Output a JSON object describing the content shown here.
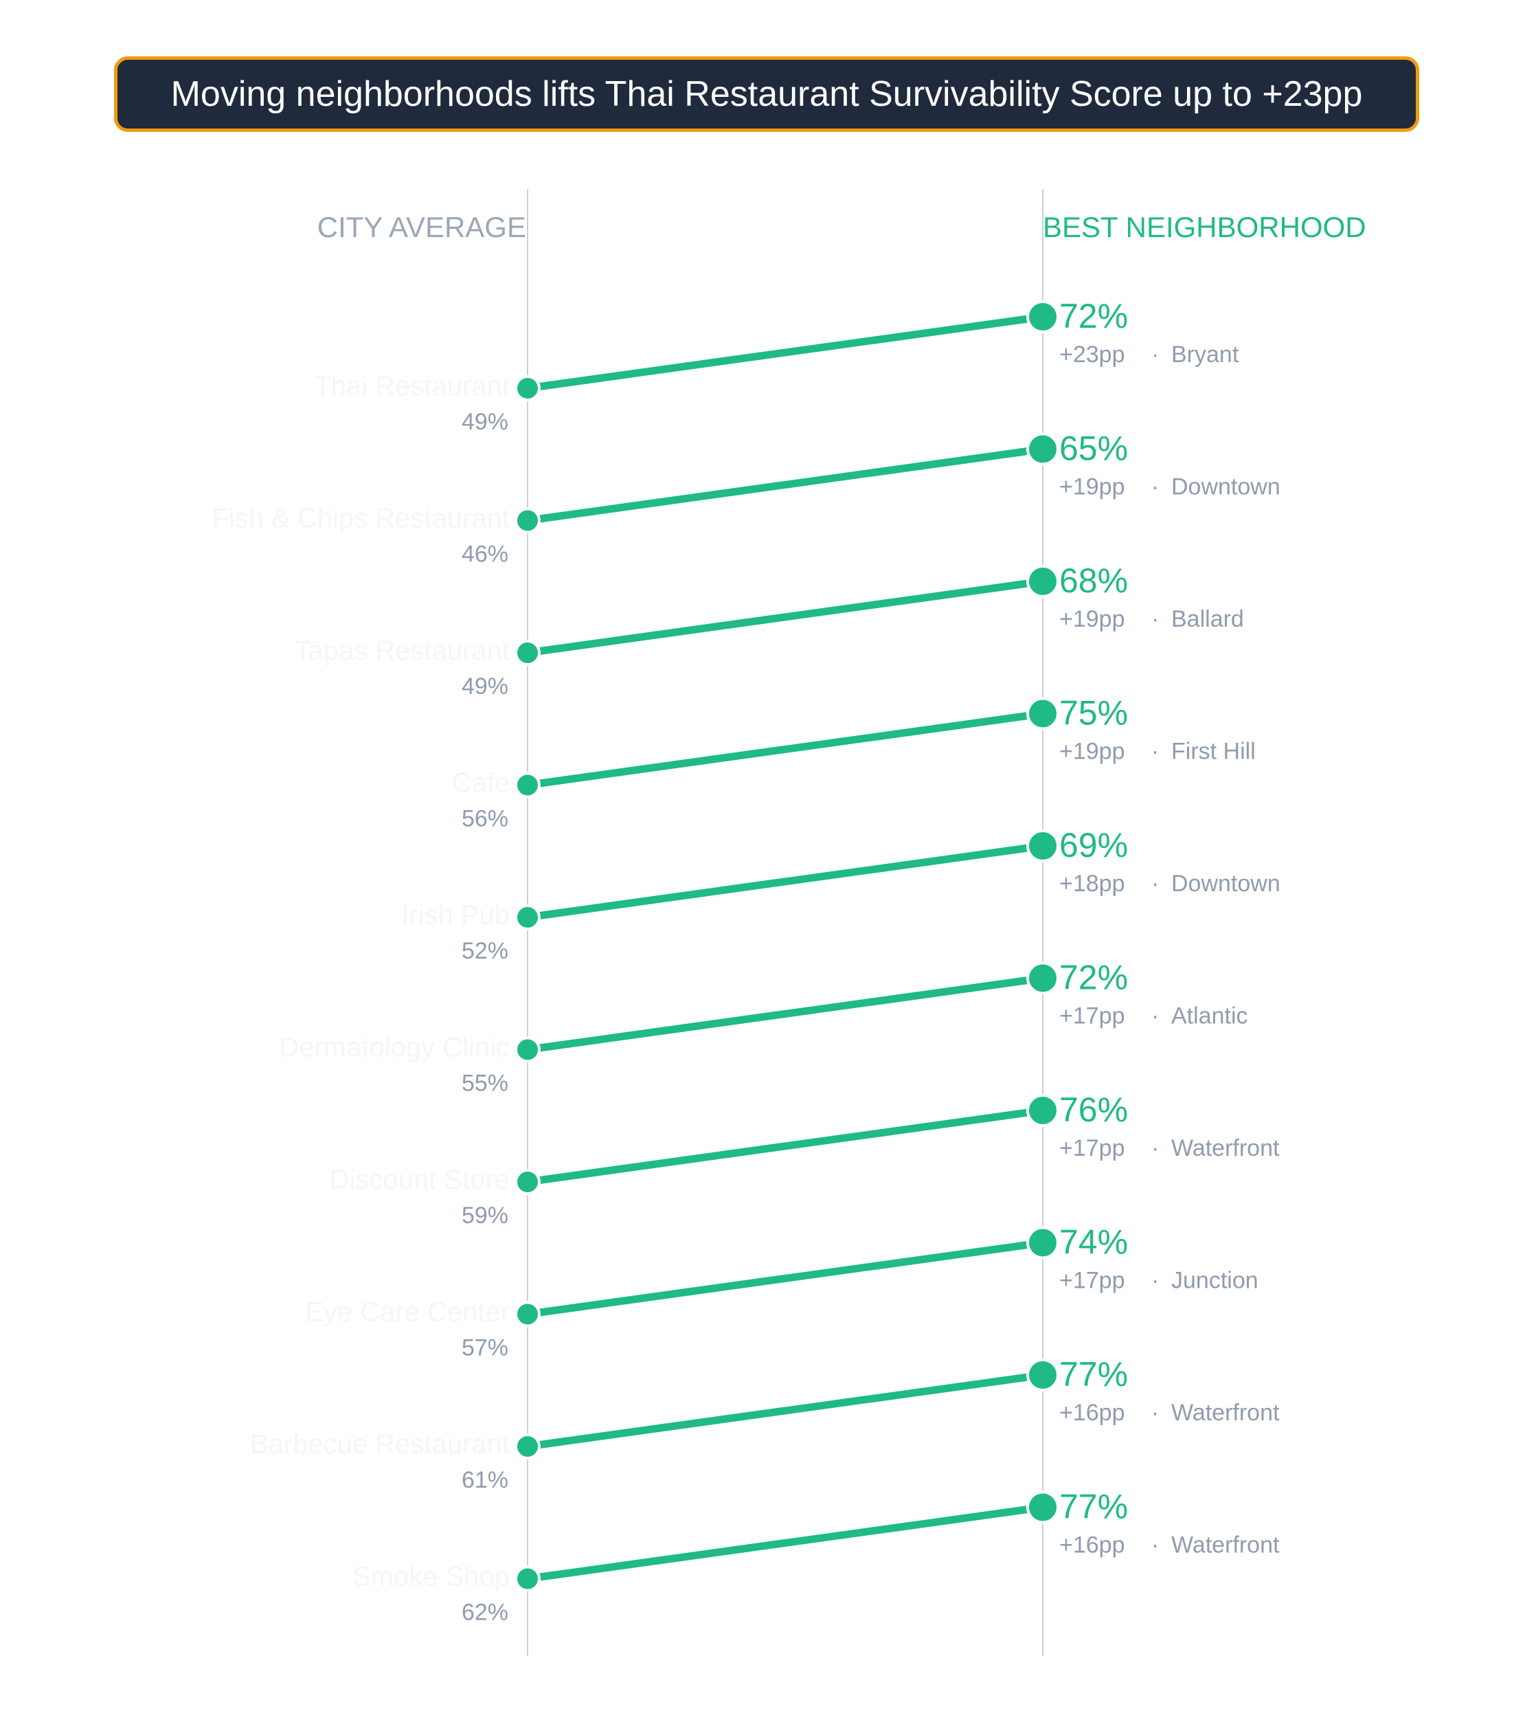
{
  "title": "Moving neighborhoods lifts Thai Restaurant Survivability Score up to +23pp",
  "colors": {
    "accent": "#1fba86",
    "title_bg": "#1f2a3c",
    "title_border": "#f29a12",
    "muted": "#8f9cae"
  },
  "chart_data": {
    "type": "line",
    "chart_kind": "slope",
    "left_header": "CITY AVERAGE",
    "right_header": "BEST NEIGHBORHOOD",
    "value_unit": "%",
    "separator": "·",
    "rows": [
      {
        "category": "Thai Restaurant",
        "city_average": 49,
        "best": 72,
        "lift": "+23pp",
        "neighborhood": "Bryant"
      },
      {
        "category": "Fish & Chips Restaurant",
        "city_average": 46,
        "best": 65,
        "lift": "+19pp",
        "neighborhood": "Downtown"
      },
      {
        "category": "Tapas Restaurant",
        "city_average": 49,
        "best": 68,
        "lift": "+19pp",
        "neighborhood": "Ballard"
      },
      {
        "category": "Cafe",
        "city_average": 56,
        "best": 75,
        "lift": "+19pp",
        "neighborhood": "First Hill"
      },
      {
        "category": "Irish Pub",
        "city_average": 52,
        "best": 69,
        "lift": "+18pp",
        "neighborhood": "Downtown"
      },
      {
        "category": "Dermatology Clinic",
        "city_average": 55,
        "best": 72,
        "lift": "+17pp",
        "neighborhood": "Atlantic"
      },
      {
        "category": "Discount Store",
        "city_average": 59,
        "best": 76,
        "lift": "+17pp",
        "neighborhood": "Waterfront"
      },
      {
        "category": "Eye Care Center",
        "city_average": 57,
        "best": 74,
        "lift": "+17pp",
        "neighborhood": "Junction"
      },
      {
        "category": "Barbecue Restaurant",
        "city_average": 61,
        "best": 77,
        "lift": "+16pp",
        "neighborhood": "Waterfront"
      },
      {
        "category": "Smoke Shop",
        "city_average": 62,
        "best": 77,
        "lift": "+16pp",
        "neighborhood": "Waterfront"
      }
    ]
  }
}
